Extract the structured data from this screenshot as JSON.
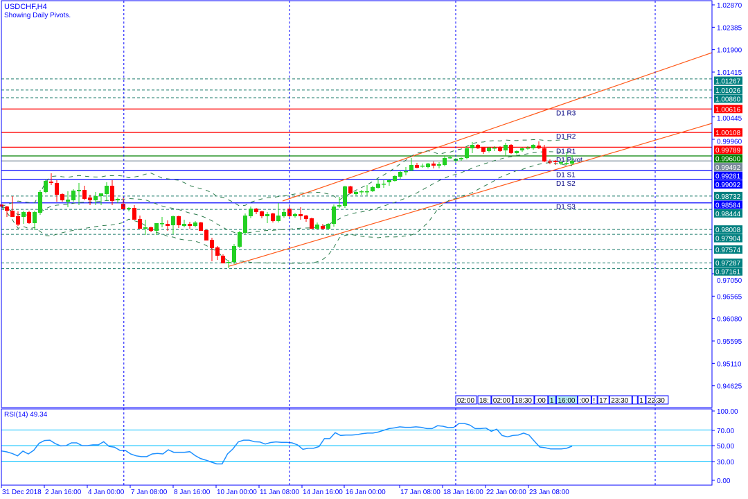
{
  "header": {
    "symbol": "USDCHF,H4",
    "subtitle": "Showing Daily Pivots."
  },
  "colors": {
    "axis": "#0000ff",
    "bull": "#22d022",
    "bear": "#ff0000",
    "level_dotted": "#1a7a6a",
    "bands": "#2a7a4a",
    "channel": "#ff5a1a",
    "rsi": "#1e90ff",
    "rsi_levels": "#00bfff",
    "resistance": "#ff0000",
    "support": "#0000ff",
    "pivot": "#008000",
    "last_price": "#778899",
    "label_teal": "#008080"
  },
  "chart_data": [
    {
      "type": "candlestick",
      "title": "USDCHF,H4",
      "ylim": [
        0.94155,
        1.02945
      ],
      "grid": false,
      "y_ticks": [
        "1.02870",
        "1.02385",
        "1.01900",
        "1.01415",
        "1.00445",
        "0.99960",
        "0.97050",
        "0.96565",
        "0.96080",
        "0.95595",
        "0.95110",
        "0.94625"
      ],
      "x_ticks": [
        "31 Dec 2018",
        "2 Jan 16:00",
        "4 Jan 00:00",
        "7 Jan 08:00",
        "8 Jan 16:00",
        "10 Jan 00:00",
        "11 Jan 08:00",
        "14 Jan 16:00",
        "16 Jan 00:00",
        "17 Jan 08:00",
        "18 Jan 16:00",
        "22 Jan 00:00",
        "23 Jan 08:00"
      ],
      "ohlc": [
        [
          0.9855,
          0.98565,
          0.9849,
          0.98505
        ],
        [
          0.98505,
          0.9852,
          0.9828,
          0.98415
        ],
        [
          0.98415,
          0.9873,
          0.9828,
          0.9828
        ],
        [
          0.98295,
          0.984,
          0.98085,
          0.98115
        ],
        [
          0.9828,
          0.98415,
          0.9813,
          0.98385
        ],
        [
          0.98385,
          0.98415,
          0.9813,
          0.98145
        ],
        [
          0.98145,
          0.98415,
          0.97995,
          0.98385
        ],
        [
          0.9837,
          0.98865,
          0.98325,
          0.9882
        ],
        [
          0.9882,
          0.9909,
          0.9879,
          0.9906
        ],
        [
          0.99045,
          0.99225,
          0.9897,
          0.99015
        ],
        [
          0.99015,
          0.99075,
          0.9861,
          0.9876
        ],
        [
          0.98775,
          0.9879,
          0.9861,
          0.9864
        ],
        [
          0.9861,
          0.98835,
          0.9849,
          0.98655
        ],
        [
          0.9864,
          0.9888,
          0.9861,
          0.9885
        ],
        [
          0.98835,
          0.99015,
          0.98535,
          0.98865
        ],
        [
          0.98865,
          0.98955,
          0.9864,
          0.9867
        ],
        [
          0.987,
          0.9876,
          0.98535,
          0.9864
        ],
        [
          0.9864,
          0.9882,
          0.98535,
          0.9873
        ],
        [
          0.9873,
          0.9879,
          0.98535,
          0.9879
        ],
        [
          0.98775,
          0.9903,
          0.98625,
          0.98955
        ],
        [
          0.98955,
          0.99075,
          0.98535,
          0.98625
        ],
        [
          0.9864,
          0.987,
          0.9858,
          0.9867
        ],
        [
          0.98565,
          0.987,
          0.98445,
          0.98445
        ],
        [
          0.9846,
          0.9849,
          0.984,
          0.98475
        ],
        [
          0.98475,
          0.98535,
          0.9822,
          0.9822
        ],
        [
          0.98235,
          0.9831,
          0.98025,
          0.98025
        ],
        [
          0.98025,
          0.9822,
          0.9789,
          0.98055
        ],
        [
          0.98055,
          0.9807,
          0.9795,
          0.9798
        ],
        [
          0.9798,
          0.98145,
          0.9789,
          0.98145
        ],
        [
          0.9813,
          0.9828,
          0.98055,
          0.98145
        ],
        [
          0.9813,
          0.98205,
          0.9798,
          0.98085
        ],
        [
          0.981,
          0.9831,
          0.97905,
          0.98295
        ],
        [
          0.98295,
          0.9831,
          0.9804,
          0.981
        ],
        [
          0.98085,
          0.9822,
          0.98055,
          0.9813
        ],
        [
          0.9813,
          0.98175,
          0.98025,
          0.98085
        ],
        [
          0.98085,
          0.9819,
          0.98055,
          0.9816
        ],
        [
          0.9816,
          0.98175,
          0.9798,
          0.9798
        ],
        [
          0.97995,
          0.9801,
          0.9777,
          0.9777
        ],
        [
          0.97785,
          0.9783,
          0.9732,
          0.97605
        ],
        [
          0.9762,
          0.9765,
          0.9735,
          0.9744
        ],
        [
          0.9744,
          0.9747,
          0.97275,
          0.97275
        ],
        [
          0.9729,
          0.9735,
          0.9717,
          0.97305
        ],
        [
          0.97305,
          0.97695,
          0.9726,
          0.9765
        ],
        [
          0.97635,
          0.9798,
          0.97605,
          0.9795
        ],
        [
          0.97935,
          0.98355,
          0.97905,
          0.9831
        ],
        [
          0.98295,
          0.98505,
          0.9825,
          0.9846
        ],
        [
          0.9846,
          0.98475,
          0.9834,
          0.98385
        ],
        [
          0.984,
          0.98415,
          0.9825,
          0.98295
        ],
        [
          0.98295,
          0.98385,
          0.98145,
          0.9834
        ],
        [
          0.98355,
          0.9837,
          0.9816,
          0.9819
        ],
        [
          0.9819,
          0.9858,
          0.9816,
          0.9831
        ],
        [
          0.98295,
          0.98445,
          0.98265,
          0.98385
        ],
        [
          0.9846,
          0.98505,
          0.98265,
          0.98295
        ],
        [
          0.98295,
          0.9837,
          0.98265,
          0.9834
        ],
        [
          0.9834,
          0.9849,
          0.9822,
          0.98295
        ],
        [
          0.9831,
          0.98325,
          0.98175,
          0.98235
        ],
        [
          0.9825,
          0.98265,
          0.98025,
          0.98025
        ],
        [
          0.98025,
          0.9816,
          0.9801,
          0.98115
        ],
        [
          0.98085,
          0.9813,
          0.9801,
          0.98025
        ],
        [
          0.98025,
          0.98145,
          0.9801,
          0.9813
        ],
        [
          0.9813,
          0.9855,
          0.9807,
          0.98505
        ],
        [
          0.98505,
          0.98715,
          0.98475,
          0.98535
        ],
        [
          0.9852,
          0.98955,
          0.98475,
          0.9894
        ],
        [
          0.9894,
          0.98955,
          0.98775,
          0.9879
        ],
        [
          0.98775,
          0.98835,
          0.98745,
          0.9882
        ],
        [
          0.9882,
          0.98865,
          0.9876,
          0.98835
        ],
        [
          0.9882,
          0.9897,
          0.98745,
          0.98835
        ],
        [
          0.98835,
          0.98955,
          0.9882,
          0.98925
        ],
        [
          0.9891,
          0.99105,
          0.98895,
          0.99
        ],
        [
          0.98985,
          0.99075,
          0.9891,
          0.99
        ],
        [
          0.9903,
          0.9909,
          0.98955,
          0.99075
        ],
        [
          0.9906,
          0.9918,
          0.99045,
          0.99165
        ],
        [
          0.9915,
          0.9927,
          0.99105,
          0.99255
        ],
        [
          0.99255,
          0.9936,
          0.9918,
          0.9927
        ],
        [
          0.99285,
          0.99555,
          0.9927,
          0.99405
        ],
        [
          0.99405,
          0.9945,
          0.9933,
          0.99345
        ],
        [
          0.99375,
          0.99435,
          0.99345,
          0.9939
        ],
        [
          0.9936,
          0.9945,
          0.9933,
          0.99435
        ],
        [
          0.99435,
          0.9948,
          0.9933,
          0.9939
        ],
        [
          0.9939,
          0.99465,
          0.9933,
          0.9942
        ],
        [
          0.99405,
          0.99615,
          0.99375,
          0.99555
        ],
        [
          0.99555,
          0.996,
          0.9954,
          0.9957
        ],
        [
          0.99495,
          0.99555,
          0.99435,
          0.9954
        ],
        [
          0.99525,
          0.9957,
          0.99495,
          0.99555
        ],
        [
          0.99555,
          0.9981,
          0.99525,
          0.99765
        ],
        [
          0.99765,
          0.999,
          0.9966,
          0.9984
        ],
        [
          0.9984,
          0.99855,
          0.9975,
          0.99765
        ],
        [
          0.9978,
          0.99795,
          0.99645,
          0.9969
        ],
        [
          0.99705,
          0.99795,
          0.99675,
          0.9978
        ],
        [
          0.99765,
          0.9981,
          0.99705,
          0.9978
        ],
        [
          0.99795,
          0.9981,
          0.9969,
          0.99705
        ],
        [
          0.9972,
          0.99885,
          0.996,
          0.9984
        ],
        [
          0.9984,
          0.99855,
          0.99645,
          0.9966
        ],
        [
          0.9966,
          0.9972,
          0.9963,
          0.99705
        ],
        [
          0.9972,
          0.9978,
          0.9969,
          0.99765
        ],
        [
          0.99765,
          0.9981,
          0.99735,
          0.9978
        ],
        [
          0.99765,
          0.99855,
          0.99735,
          0.9984
        ],
        [
          0.99825,
          0.99915,
          0.9975,
          0.99765
        ],
        [
          0.99765,
          0.9984,
          0.99465,
          0.9948
        ],
        [
          0.9948,
          0.99525,
          0.9942,
          0.99465
        ],
        [
          0.99495,
          0.9951,
          0.99405,
          0.99465
        ],
        [
          0.99435,
          0.9948,
          0.99405,
          0.99465
        ],
        [
          0.99435,
          0.99675,
          0.99405,
          0.9945
        ],
        [
          0.99435,
          0.99615,
          0.99405,
          0.99492
        ]
      ],
      "levels": [
        {
          "price": "1.01267",
          "style": "dotted",
          "color": "#1a7a6a",
          "label": ""
        },
        {
          "price": "1.01026",
          "style": "dotted",
          "color": "#1a7a6a",
          "label": ""
        },
        {
          "price": "1.00860",
          "style": "dotted",
          "color": "#1a7a6a",
          "label": ""
        },
        {
          "price": "1.00616",
          "style": "solid",
          "color": "#ff0000",
          "label": "D1 R3"
        },
        {
          "price": "1.00108",
          "style": "solid",
          "color": "#ff0000",
          "label": "D1 R2"
        },
        {
          "price": "0.99789",
          "style": "solid",
          "color": "#ff0000",
          "label": "D1 R1"
        },
        {
          "price": "0.99600",
          "style": "solid",
          "color": "#008000",
          "label": "D1 Pivot"
        },
        {
          "price": "0.99492",
          "style": "solid",
          "color": "#778899",
          "label": ""
        },
        {
          "price": "0.99281",
          "style": "solid",
          "color": "#0000ff",
          "label": "D1 S1"
        },
        {
          "price": "0.99092",
          "style": "solid",
          "color": "#0000ff",
          "label": "D1 S2"
        },
        {
          "price": "0.98732",
          "style": "dotted",
          "color": "#1a7a6a",
          "label": ""
        },
        {
          "price": "0.98584",
          "style": "solid",
          "color": "#0000ff",
          "label": "D1 S3"
        },
        {
          "price": "0.98444",
          "style": "dotted",
          "color": "#1a7a6a",
          "label": ""
        },
        {
          "price": "0.98008",
          "style": "dotted",
          "color": "#1a7a6a",
          "label": ""
        },
        {
          "price": "0.97904",
          "style": "dotted",
          "color": "#1a7a6a",
          "label": ""
        },
        {
          "price": "0.97574",
          "style": "dotted",
          "color": "#1a7a6a",
          "label": ""
        },
        {
          "price": "0.97287",
          "style": "dotted",
          "color": "#1a7a6a",
          "label": ""
        },
        {
          "price": "0.97161",
          "style": "dotted",
          "color": "#1a7a6a",
          "label": ""
        }
      ],
      "channel": [
        {
          "from_bar": 50.75,
          "from_price": 0.98625,
          "to_bar": 128.25,
          "to_price": 1.01835
        },
        {
          "from_bar": 41,
          "from_price": 0.9721,
          "to_bar": 128.25,
          "to_price": 1.00305
        }
      ],
      "time_labels": [
        "02:00",
        "18:",
        "02:00",
        "18:30",
        ":00",
        "1",
        "16:00",
        ":00",
        "!",
        "17",
        "23:30",
        "",
        "1",
        "22:30"
      ]
    },
    {
      "type": "line",
      "title": "RSI(14) 49.34",
      "ylim": [
        0,
        100
      ],
      "y_ticks": [
        "100.00",
        "70.00",
        "50.00",
        "30.00",
        "0.00"
      ],
      "levels": [
        70,
        50,
        30
      ],
      "values": [
        43.2,
        42,
        40,
        37,
        43,
        39.4,
        44,
        53,
        56.5,
        57,
        52.6,
        49.7,
        50,
        53.5,
        53.5,
        50,
        50,
        51,
        51,
        55,
        49,
        48,
        44,
        44,
        39.4,
        37,
        36,
        36,
        39.4,
        40,
        39.4,
        44.7,
        41.5,
        41.5,
        41.5,
        42.3,
        37.3,
        33.5,
        31.4,
        29,
        26.7,
        26.7,
        39.4,
        45.8,
        54.7,
        57,
        57,
        55,
        54.7,
        52,
        54,
        54.7,
        54.2,
        54.2,
        53.5,
        51,
        45.3,
        46.7,
        46.7,
        48.8,
        59,
        59,
        66.5,
        63,
        63.5,
        63.5,
        64,
        65.3,
        66,
        66,
        67.4,
        69.5,
        71.8,
        72.7,
        74,
        73.3,
        73.3,
        74,
        73.3,
        71.8,
        71.8,
        75.4,
        74.8,
        73,
        73.3,
        78.3,
        78.3,
        76.3,
        71.8,
        71.8,
        72.4,
        68.3,
        71,
        63,
        61.2,
        63,
        63.5,
        66,
        63.5,
        55.6,
        48.2,
        47.3,
        45.8,
        45.8,
        45.8,
        46.7,
        49.34
      ]
    }
  ]
}
